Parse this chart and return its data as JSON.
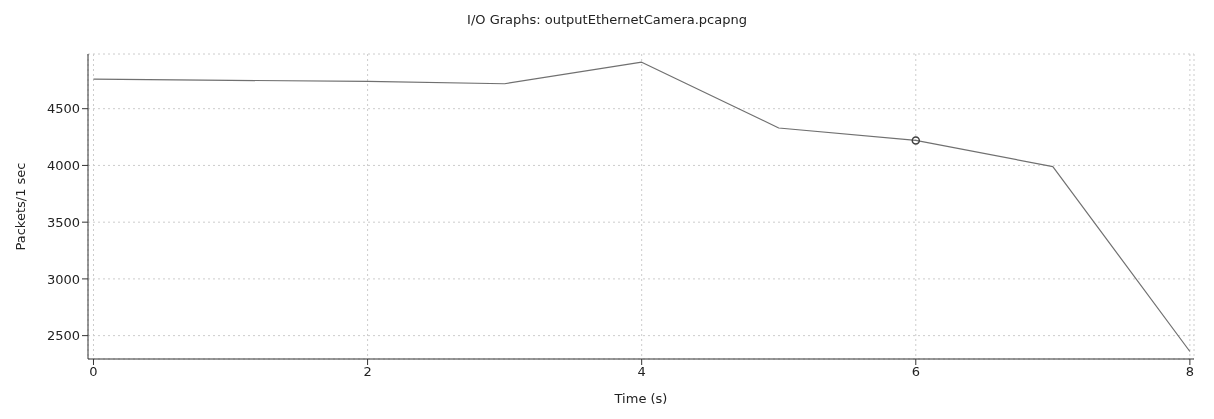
{
  "chart_data": {
    "type": "line",
    "title": "I/O Graphs: outputEthernetCamera.pcapng",
    "xlabel": "Time (s)",
    "ylabel": "Packets/1 sec",
    "x": [
      0,
      1,
      2,
      3,
      4,
      5,
      6,
      7,
      8
    ],
    "series": [
      {
        "color": "#707070",
        "values": [
          4760,
          4750,
          4740,
          4720,
          4910,
          4330,
          4220,
          3990,
          2360
        ],
        "marker": "none"
      },
      {
        "type": "scatter",
        "color": "#404040",
        "x": [
          6
        ],
        "values": [
          4220
        ],
        "marker": "circle"
      }
    ],
    "xlim": [
      -0.04,
      8.03
    ],
    "xticks": [
      0,
      2,
      4,
      6,
      8
    ],
    "ylim": [
      2294,
      4982
    ],
    "yticks": [
      2500,
      3000,
      3500,
      4000,
      4500
    ],
    "grid": true,
    "line_style": "solid"
  }
}
